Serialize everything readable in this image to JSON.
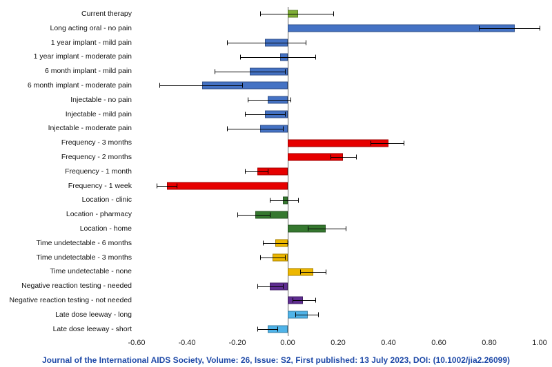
{
  "chart_data": {
    "type": "bar",
    "orientation": "horizontal",
    "title": "",
    "xlabel": "",
    "ylabel": "",
    "xlim": [
      -0.6,
      1.0
    ],
    "grid": false,
    "legend": "none",
    "xtick_values": [
      -0.6,
      -0.4,
      -0.2,
      0.0,
      0.2,
      0.4,
      0.6,
      0.8,
      1.0
    ],
    "xtick_labels": [
      "-0.60",
      "-0.40",
      "-0.20",
      "0.00",
      "0.20",
      "0.40",
      "0.60",
      "0.80",
      "1.00"
    ],
    "items": [
      {
        "label": "Current therapy",
        "value": 0.04,
        "ci": [
          -0.11,
          0.18
        ],
        "color": "#7fae35"
      },
      {
        "label": "Long acting oral - no pain",
        "value": 0.9,
        "ci": [
          0.76,
          1.0
        ],
        "color": "#4472c4"
      },
      {
        "label": "1 year implant - mild pain",
        "value": -0.09,
        "ci": [
          -0.24,
          0.07
        ],
        "color": "#4472c4"
      },
      {
        "label": "1 year implant - moderate pain",
        "value": -0.03,
        "ci": [
          -0.19,
          0.11
        ],
        "color": "#4472c4"
      },
      {
        "label": "6 month implant - mild pain",
        "value": -0.15,
        "ci": [
          -0.29,
          -0.01
        ],
        "color": "#4472c4"
      },
      {
        "label": "6 month implant - moderate pain",
        "value": -0.34,
        "ci": [
          -0.51,
          -0.18
        ],
        "color": "#4472c4"
      },
      {
        "label": "Injectable - no pain",
        "value": -0.08,
        "ci": [
          -0.16,
          0.01
        ],
        "color": "#4472c4"
      },
      {
        "label": "Injectable - mild pain",
        "value": -0.09,
        "ci": [
          -0.17,
          -0.01
        ],
        "color": "#4472c4"
      },
      {
        "label": "Injectable - moderate pain",
        "value": -0.11,
        "ci": [
          -0.24,
          -0.02
        ],
        "color": "#4472c4"
      },
      {
        "label": "Frequency - 3 months",
        "value": 0.4,
        "ci": [
          0.33,
          0.46
        ],
        "color": "#e60000"
      },
      {
        "label": "Frequency - 2 months",
        "value": 0.22,
        "ci": [
          0.17,
          0.27
        ],
        "color": "#e60000"
      },
      {
        "label": "Frequency - 1 month",
        "value": -0.12,
        "ci": [
          -0.17,
          -0.08
        ],
        "color": "#e60000"
      },
      {
        "label": "Frequency - 1 week",
        "value": -0.48,
        "ci": [
          -0.52,
          -0.44
        ],
        "color": "#e60000"
      },
      {
        "label": "Location - clinic",
        "value": -0.02,
        "ci": [
          -0.07,
          0.04
        ],
        "color": "#35782f"
      },
      {
        "label": "Location - pharmacy",
        "value": -0.13,
        "ci": [
          -0.2,
          -0.07
        ],
        "color": "#35782f"
      },
      {
        "label": "Location - home",
        "value": 0.15,
        "ci": [
          0.08,
          0.23
        ],
        "color": "#35782f"
      },
      {
        "label": "Time undetectable - 6 months",
        "value": -0.05,
        "ci": [
          -0.1,
          0.0
        ],
        "color": "#edb700"
      },
      {
        "label": "Time undetectable - 3 months",
        "value": -0.06,
        "ci": [
          -0.11,
          -0.01
        ],
        "color": "#edb700"
      },
      {
        "label": "Time undetectable - none",
        "value": 0.1,
        "ci": [
          0.05,
          0.15
        ],
        "color": "#edb700"
      },
      {
        "label": "Negative reaction testing - needed",
        "value": -0.07,
        "ci": [
          -0.12,
          -0.02
        ],
        "color": "#5f2d91"
      },
      {
        "label": "Negative reaction testing - not needed",
        "value": 0.06,
        "ci": [
          0.02,
          0.11
        ],
        "color": "#5f2d91"
      },
      {
        "label": "Late dose leeway - long",
        "value": 0.08,
        "ci": [
          0.03,
          0.12
        ],
        "color": "#4fb3e8"
      },
      {
        "label": "Late dose leeway - short",
        "value": -0.08,
        "ci": [
          -0.12,
          -0.04
        ],
        "color": "#4fb3e8"
      }
    ]
  },
  "footer": {
    "text": "Journal of the International AIDS Society, Volume: 26, Issue: S2, First published: 13 July 2023, DOI: (10.1002/jia2.26099)",
    "color": "#1f4aa8"
  }
}
